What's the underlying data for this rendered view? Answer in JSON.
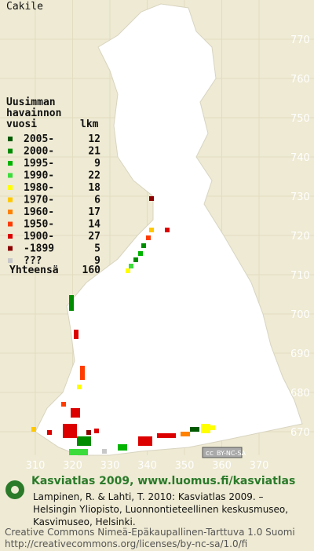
{
  "title": "Cakile",
  "grid": {
    "x_labels": [
      310,
      320,
      330,
      340,
      350,
      360,
      370
    ],
    "y_labels": [
      770,
      760,
      750,
      740,
      730,
      720,
      710,
      700,
      690,
      680,
      670
    ]
  },
  "legend": {
    "heading": [
      "Uusimman",
      "havainnon",
      "vuosi"
    ],
    "count_heading": "lkm",
    "entries": [
      {
        "label": "2005-",
        "count": "12",
        "color": "#005a00"
      },
      {
        "label": "2000-",
        "count": "21",
        "color": "#008c00"
      },
      {
        "label": "1995-",
        "count": "9",
        "color": "#00b400"
      },
      {
        "label": "1990-",
        "count": "22",
        "color": "#3cdc3c"
      },
      {
        "label": "1980-",
        "count": "18",
        "color": "#ffff00"
      },
      {
        "label": "1970-",
        "count": "6",
        "color": "#ffc800"
      },
      {
        "label": "1960-",
        "count": "17",
        "color": "#ff8200"
      },
      {
        "label": "1950-",
        "count": "14",
        "color": "#ff3c00"
      },
      {
        "label": "1900-",
        "count": "27",
        "color": "#dc0000"
      },
      {
        "label": "-1899",
        "count": "5",
        "color": "#8c0000"
      },
      {
        "label": "???",
        "count": "9",
        "color": "#c8c8c8"
      }
    ],
    "total_label": "Yhteensä",
    "total": "160"
  },
  "badge": {
    "cc": "cc",
    "license": "BY-NC-SA"
  },
  "footer": {
    "heading": "Kasviatlas 2009, www.luomus.fi/kasviatlas",
    "citation": [
      "Lampinen, R. & Lahti, T. 2010: Kasviatlas 2009. –",
      "Helsingin Yliopisto, Luonnontieteellinen keskusmuseo,",
      "Kasvimuseo, Helsinki."
    ],
    "license": [
      "Creative Commons Nimeä-Epäkaupallinen-Tarttuva 1.0 Suomi",
      "http://creativecommons.org/licenses/by-nc-sa/1.0/fi"
    ]
  }
}
